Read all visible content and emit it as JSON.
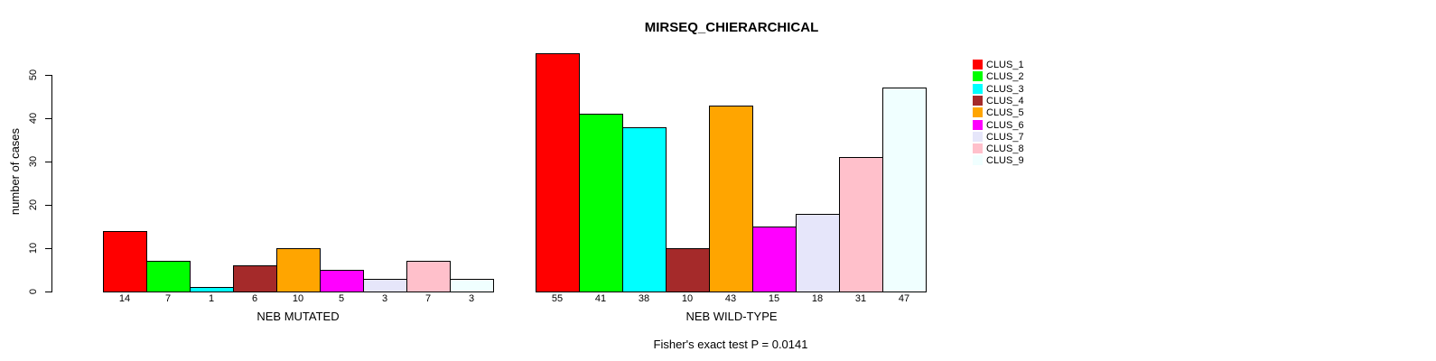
{
  "chart_data": {
    "type": "bar",
    "title": "MIRSEQ_CHIERARCHICAL",
    "subtitle": "Fisher's exact test P = 0.0141",
    "ylabel": "number of cases",
    "categories": [
      "CLUS_1",
      "CLUS_2",
      "CLUS_3",
      "CLUS_4",
      "CLUS_5",
      "CLUS_6",
      "CLUS_7",
      "CLUS_8",
      "CLUS_9"
    ],
    "colors": [
      "#FF0000",
      "#00FF00",
      "#00FFFF",
      "#A52A2A",
      "#FFA500",
      "#FF00FF",
      "#E6E6FA",
      "#FFC0CB",
      "#F0FFFF"
    ],
    "series": [
      {
        "name": "NEB MUTATED",
        "values": [
          14,
          7,
          1,
          6,
          10,
          5,
          3,
          7,
          3
        ]
      },
      {
        "name": "NEB WILD-TYPE",
        "values": [
          55,
          41,
          38,
          10,
          43,
          15,
          18,
          31,
          47
        ]
      }
    ],
    "yticks": [
      0,
      10,
      20,
      30,
      40,
      50
    ],
    "ylim": [
      0,
      55
    ],
    "grid": false,
    "legend_position": "right",
    "bar_value_labels_shown": true
  }
}
